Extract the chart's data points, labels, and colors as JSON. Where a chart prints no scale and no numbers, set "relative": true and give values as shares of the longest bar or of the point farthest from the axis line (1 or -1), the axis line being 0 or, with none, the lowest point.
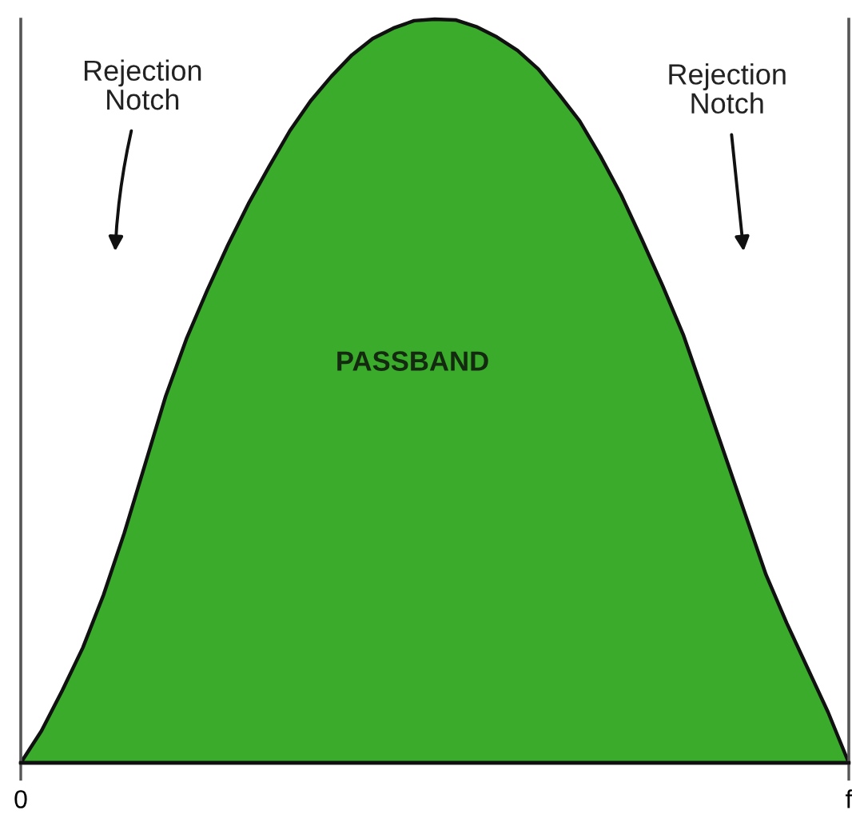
{
  "chart_data": {
    "type": "area",
    "relative": true,
    "categories": [
      "0",
      null,
      null,
      null,
      null,
      null,
      null,
      null,
      null,
      null,
      null,
      null,
      null,
      null,
      null,
      null,
      null,
      null,
      null,
      null,
      null,
      null,
      null,
      null,
      null,
      null,
      null,
      null,
      null,
      null,
      null,
      null,
      null,
      null,
      null,
      null,
      null,
      null,
      null,
      null,
      "f"
    ],
    "values": [
      0,
      0.043,
      0.097,
      0.155,
      0.226,
      0.309,
      0.401,
      0.493,
      0.57,
      0.635,
      0.696,
      0.752,
      0.802,
      0.85,
      0.89,
      0.923,
      0.952,
      0.974,
      0.988,
      0.998,
      1.0,
      0.999,
      0.99,
      0.976,
      0.958,
      0.933,
      0.899,
      0.863,
      0.816,
      0.764,
      0.704,
      0.642,
      0.576,
      0.496,
      0.415,
      0.334,
      0.253,
      0.188,
      0.128,
      0.068,
      0
    ],
    "color": "#3aab2b",
    "tick_labels": "x",
    "annotations": [
      "Rejection\nNotch",
      "Rejection\nNotch",
      "PASSBAND"
    ]
  }
}
